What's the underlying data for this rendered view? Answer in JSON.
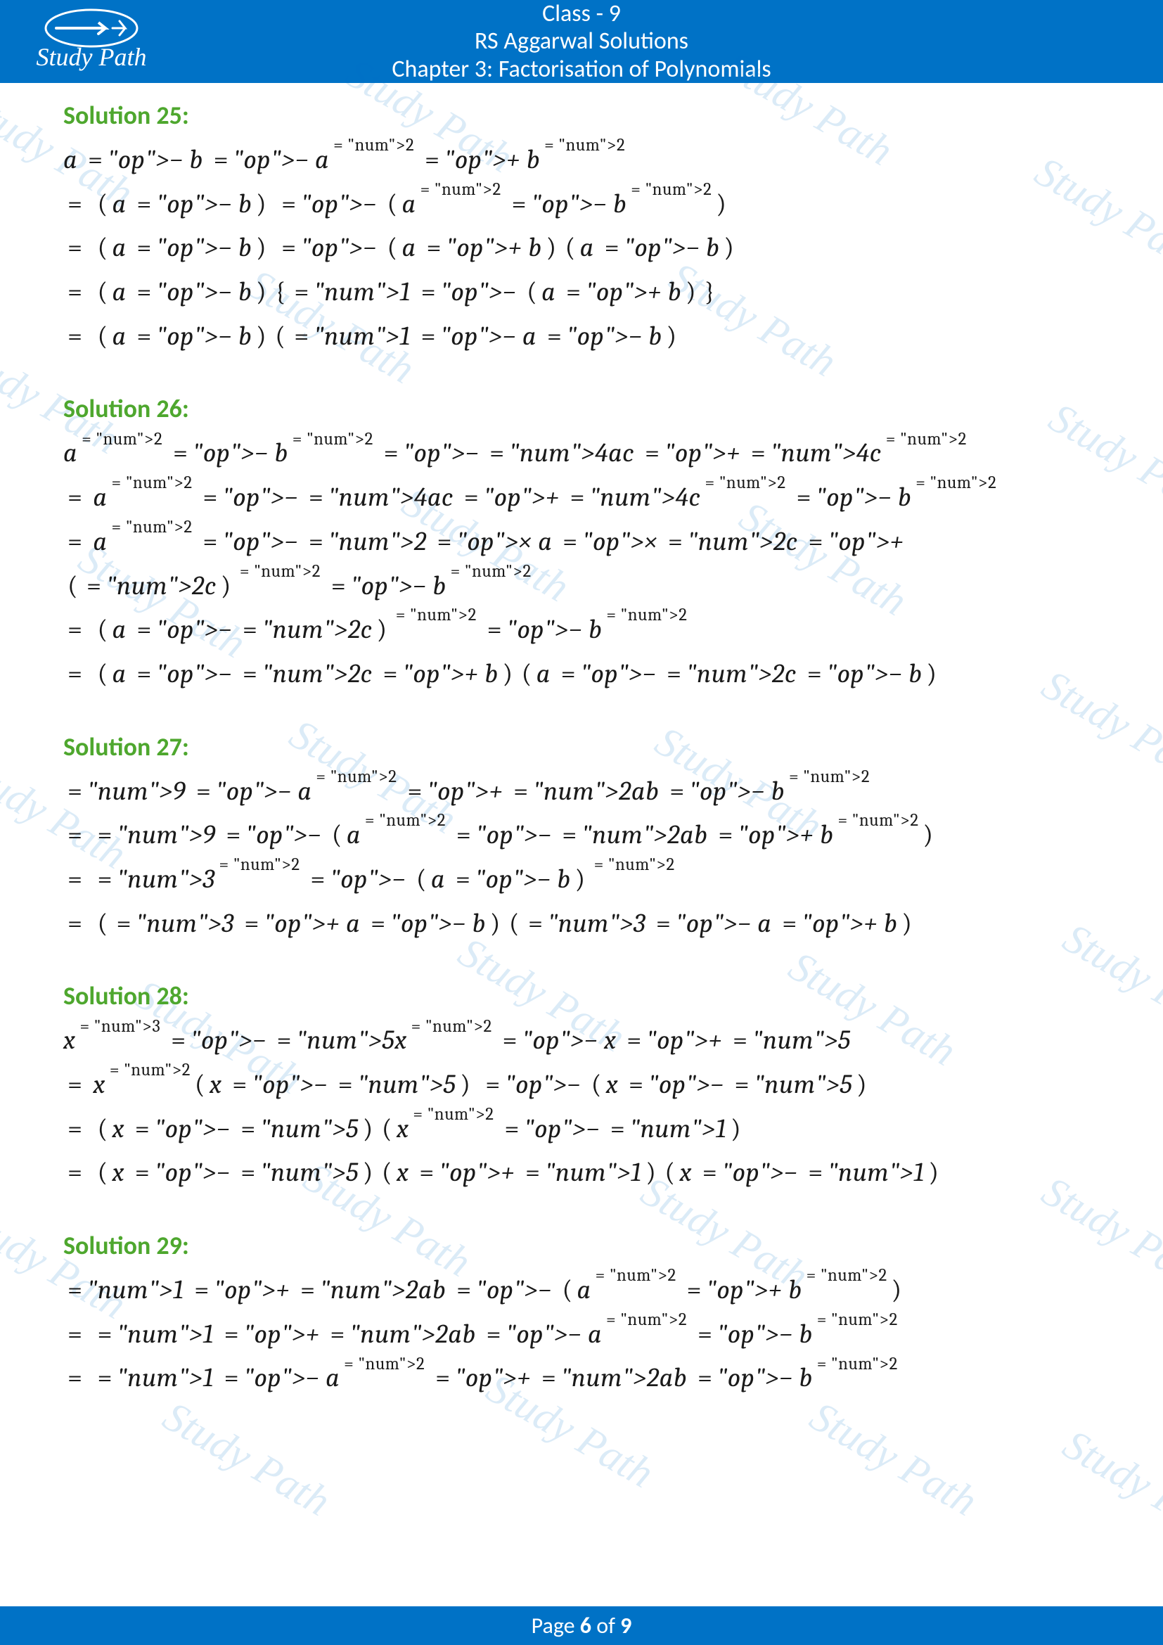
{
  "header": {
    "line1": "Class - 9",
    "line2": "RS Aggarwal Solutions",
    "line3": "Chapter 3: Factorisation of Polynomials",
    "brand": "Study Path",
    "brand_color": "#0072c6",
    "text_color": "#ffffff"
  },
  "footer": {
    "prefix": "Page ",
    "current": "6",
    "middle": " of ",
    "total": "9"
  },
  "watermark": {
    "text": "Study Path"
  },
  "colors": {
    "solution_title": "#4ea72e",
    "math_text": "#1a1a1a",
    "header_bg": "#0072c6"
  },
  "solutions": {
    "s25": {
      "title": "Solution 25:",
      "l1": "a − b − a² + b²",
      "l2": "= (a − b) − (a² − b²)",
      "l3": "= (a − b) − (a + b)(a − b)",
      "l4": "= (a − b){1 − (a + b)}",
      "l5": "= (a − b)(1 − a − b)"
    },
    "s26": {
      "title": "Solution 26:",
      "l1": "a² − b² − 4ac + 4c²",
      "l2": "= a² − 4ac + 4c² − b²",
      "l3": "= a² − 2 × a × 2c + (2c)² − b²",
      "l4": "= (a − 2c)² − b²",
      "l5": "= (a − 2c + b)(a − 2c − b)"
    },
    "s27": {
      "title": "Solution 27:",
      "l1": "9 − a² + 2ab − b²",
      "l2": "= 9 − (a² − 2ab + b²)",
      "l3": "= 3² − (a − b)²",
      "l4": "= (3 + a − b)(3 − a + b)"
    },
    "s28": {
      "title": "Solution 28:",
      "l1": "x³ − 5x² − x + 5",
      "l2": "= x²(x − 5) − (x − 5)",
      "l3": "= (x − 5)(x² − 1)",
      "l4": "= (x − 5)(x + 1)(x − 1)"
    },
    "s29": {
      "title": "Solution 29:",
      "l1": "1 + 2ab − (a² + b²)",
      "l2": "= 1 + 2ab − a² − b²",
      "l3": "= 1 − a² + 2ab − b²"
    }
  }
}
